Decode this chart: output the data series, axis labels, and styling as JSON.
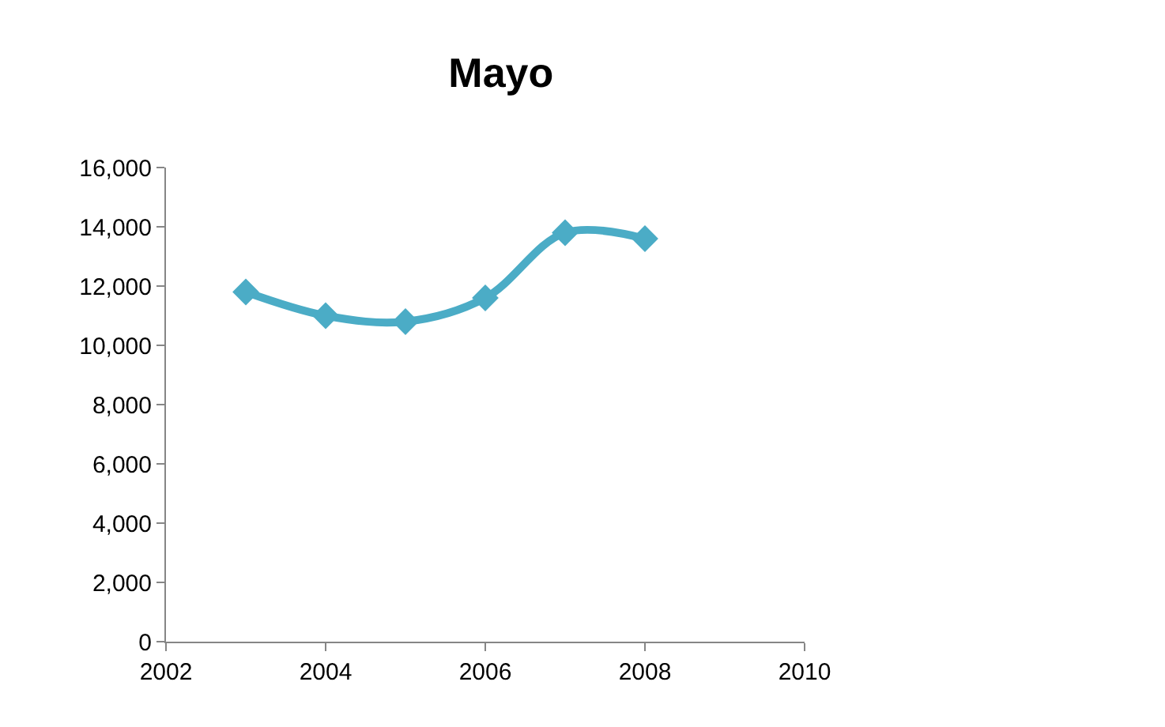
{
  "chart_data": {
    "type": "line",
    "title": "Mayo",
    "x": [
      2003,
      2004,
      2005,
      2006,
      2007,
      2008
    ],
    "series": [
      {
        "color": "#4bacc6",
        "values": [
          11800,
          11000,
          10800,
          11600,
          13800,
          13600
        ]
      }
    ],
    "xlim": [
      2002,
      2010
    ],
    "xticks": [
      2002,
      2004,
      2006,
      2008,
      2010
    ],
    "ylim": [
      0,
      16000
    ],
    "yticks": [
      0,
      {
        "value": 2000,
        "label": "2,000"
      },
      {
        "value": 4000,
        "label": "4,000"
      },
      {
        "value": 6000,
        "label": "6,000"
      },
      {
        "value": 8000,
        "label": "8,000"
      },
      {
        "value": 10000,
        "label": "10,000"
      },
      {
        "value": 12000,
        "label": "12,000"
      },
      {
        "value": 14000,
        "label": "14,000"
      },
      {
        "value": 16000,
        "label": "16,000"
      }
    ],
    "marker": "diamond",
    "line_style": "solid"
  }
}
